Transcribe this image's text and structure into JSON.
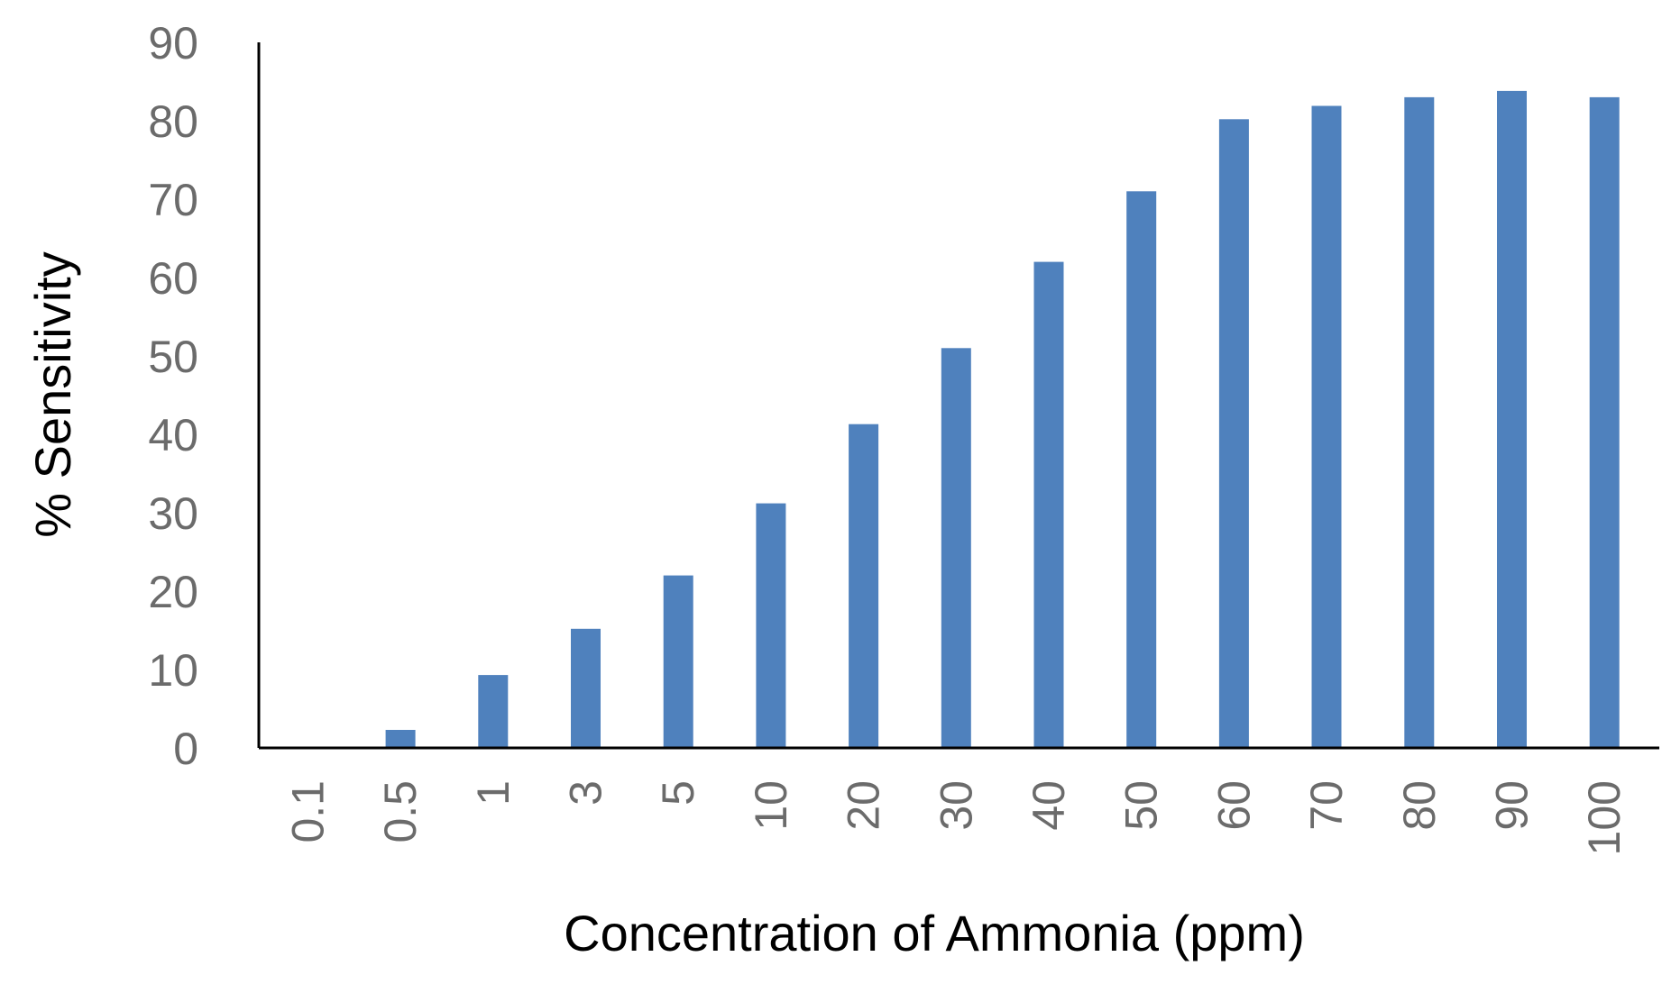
{
  "chart_data": {
    "type": "bar",
    "title": "",
    "xlabel": "Concentration of Ammonia (ppm)",
    "ylabel": "% Sensitivity",
    "categories": [
      "0.1",
      "0.5",
      "1",
      "3",
      "5",
      "10",
      "20",
      "30",
      "40",
      "50",
      "60",
      "70",
      "80",
      "90",
      "100"
    ],
    "series": [
      {
        "values": [
          0,
          2.3,
          9.3,
          15.2,
          22,
          31.2,
          41.3,
          51,
          62,
          71,
          80.2,
          81.9,
          83,
          83.8,
          83
        ]
      }
    ],
    "ylim": [
      0,
      90
    ],
    "yticks": [
      "0",
      "10",
      "20",
      "30",
      "40",
      "50",
      "60",
      "70",
      "80",
      "90"
    ],
    "grid": false,
    "legend": "none",
    "colors": {
      "bar": "#4f81bd",
      "axis": "#000000",
      "tick_text": "#6b6b6b"
    }
  }
}
